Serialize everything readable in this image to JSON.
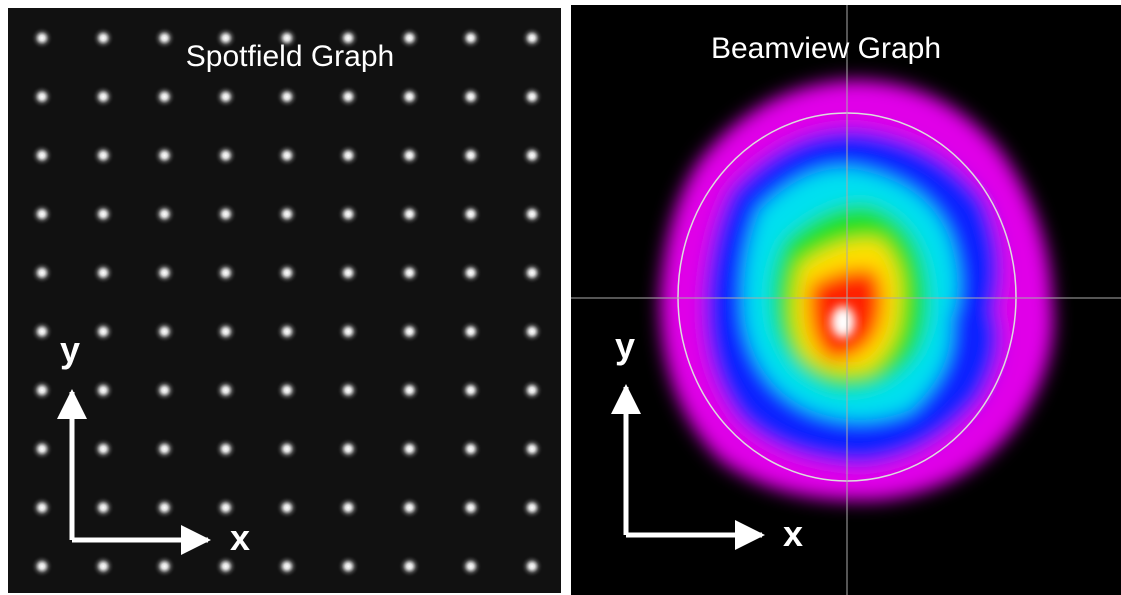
{
  "spotfield": {
    "title": "Spotfield Graph",
    "y_label": "y",
    "x_label": "x"
  },
  "beamview": {
    "title": "Beamview Graph",
    "y_label": "y",
    "x_label": "x"
  }
}
